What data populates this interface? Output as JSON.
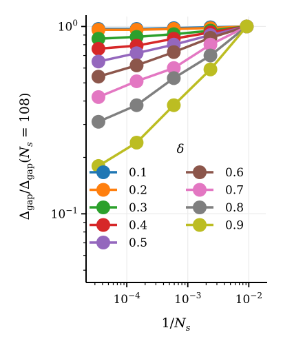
{
  "chart_data": {
    "type": "line",
    "xscale": "log",
    "yscale": "log",
    "xlabel": "1/N_s",
    "ylabel": "Δ_gap/Δ_gap(N_s = 108)",
    "xlim": [
      2.15e-05,
      0.019
    ],
    "ylim": [
      0.043,
      1.13
    ],
    "x_ticks": [
      {
        "value": 0.0001,
        "base": "10",
        "exp": "−4"
      },
      {
        "value": 0.001,
        "base": "10",
        "exp": "−3"
      },
      {
        "value": 0.01,
        "base": "10",
        "exp": "−2"
      }
    ],
    "y_ticks": [
      {
        "value": 0.1,
        "base": "10",
        "exp": "−1"
      },
      {
        "value": 1,
        "base": "10",
        "exp": "0"
      }
    ],
    "grid": true,
    "legend": {
      "title": "δ",
      "placement": "lower-center",
      "columns": 2
    },
    "x": [
      3.43e-05,
      0.000145,
      0.00059,
      0.00235,
      0.00926
    ],
    "series": [
      {
        "name": "0.1",
        "color": "#1f77b4",
        "values": [
          0.97,
          0.97,
          0.98,
          0.99,
          1.0
        ]
      },
      {
        "name": "0.2",
        "color": "#ff7f0e",
        "values": [
          0.96,
          0.96,
          0.97,
          0.98,
          1.0
        ]
      },
      {
        "name": "0.3",
        "color": "#2ca02c",
        "values": [
          0.86,
          0.88,
          0.91,
          0.95,
          1.0
        ]
      },
      {
        "name": "0.4",
        "color": "#d62728",
        "values": [
          0.76,
          0.79,
          0.86,
          0.93,
          1.0
        ]
      },
      {
        "name": "0.5",
        "color": "#9467bd",
        "values": [
          0.65,
          0.72,
          0.8,
          0.9,
          1.0
        ]
      },
      {
        "name": "0.6",
        "color": "#8c564b",
        "values": [
          0.54,
          0.62,
          0.73,
          0.87,
          1.0
        ]
      },
      {
        "name": "0.7",
        "color": "#e377c2",
        "values": [
          0.42,
          0.51,
          0.6,
          0.8,
          1.0
        ]
      },
      {
        "name": "0.8",
        "color": "#7f7f7f",
        "values": [
          0.31,
          0.38,
          0.53,
          0.7,
          1.0
        ]
      },
      {
        "name": "0.9",
        "color": "#bcbd22",
        "values": [
          0.18,
          0.24,
          0.38,
          0.59,
          1.0
        ]
      }
    ]
  }
}
